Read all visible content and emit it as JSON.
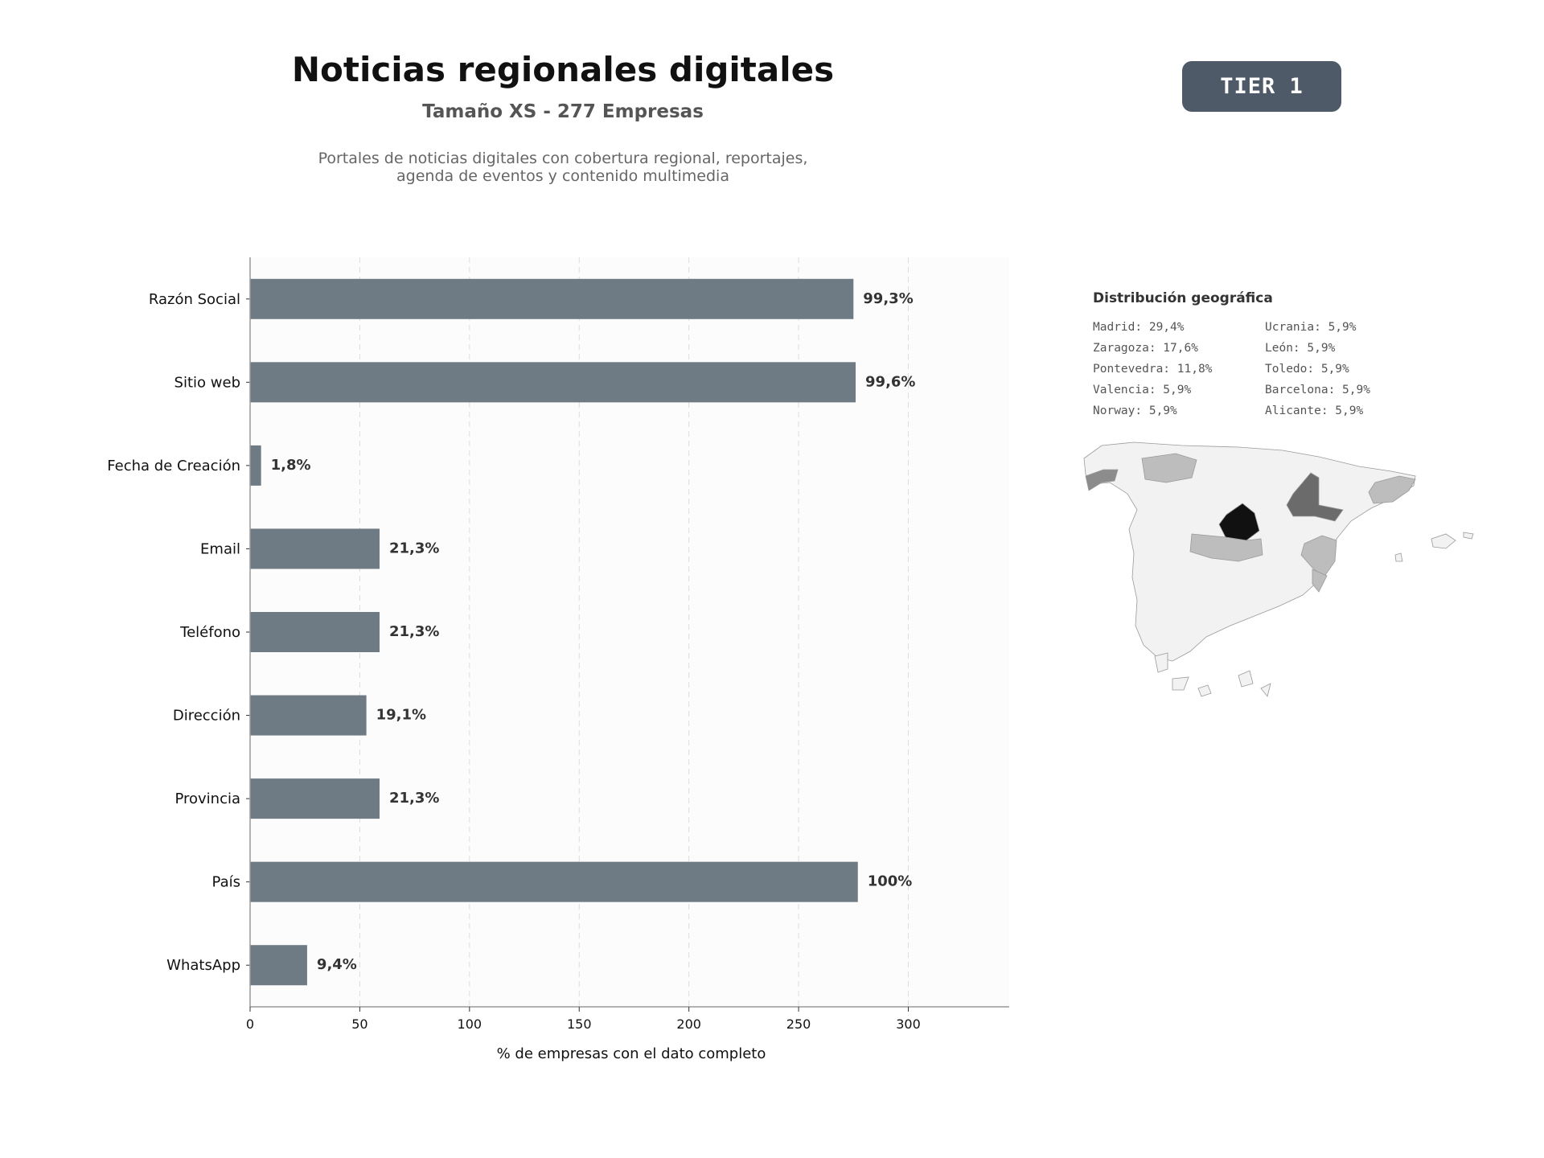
{
  "header": {
    "title": "Noticias regionales digitales",
    "subtitle": "Tamaño XS - 277 Empresas",
    "description_line1": "Portales de noticias digitales con cobertura regional, reportajes,",
    "description_line2": "agenda de eventos y contenido multimedia",
    "tier_label": "TIER 1"
  },
  "chart_data": {
    "type": "bar",
    "orientation": "horizontal",
    "categories": [
      "Razón Social",
      "Sitio web",
      "Fecha de Creación",
      "Email",
      "Teléfono",
      "Dirección",
      "Provincia",
      "País",
      "WhatsApp"
    ],
    "values": [
      275,
      276,
      5,
      59,
      59,
      53,
      59,
      277,
      26
    ],
    "data_labels": [
      "99,3%",
      "99,6%",
      "1,8%",
      "21,3%",
      "21,3%",
      "19,1%",
      "21,3%",
      "100%",
      "9,4%"
    ],
    "xlabel": "% de empresas con el dato completo",
    "ylabel": "",
    "xlim": [
      0,
      346
    ],
    "xticks": [
      0,
      50,
      100,
      150,
      200,
      250,
      300
    ],
    "grid": "vertical dashed",
    "bar_color": "#6e7a84"
  },
  "geo": {
    "title": "Distribución geográfica",
    "items": [
      "Madrid: 29,4%",
      "Ucrania: 5,9%",
      "Zaragoza: 17,6%",
      "León: 5,9%",
      "Pontevedra: 11,8%",
      "Toledo: 5,9%",
      "Valencia: 5,9%",
      "Barcelona: 5,9%",
      "Norway: 5,9%",
      "Alicante: 5,9%"
    ],
    "map_colors": {
      "default": "#f2f2f2",
      "madrid": "#111111",
      "zaragoza": "#6b6b6b",
      "pontevedra": "#8c8c8c",
      "light": "#bdbdbd",
      "border": "#9a9a9a"
    }
  }
}
